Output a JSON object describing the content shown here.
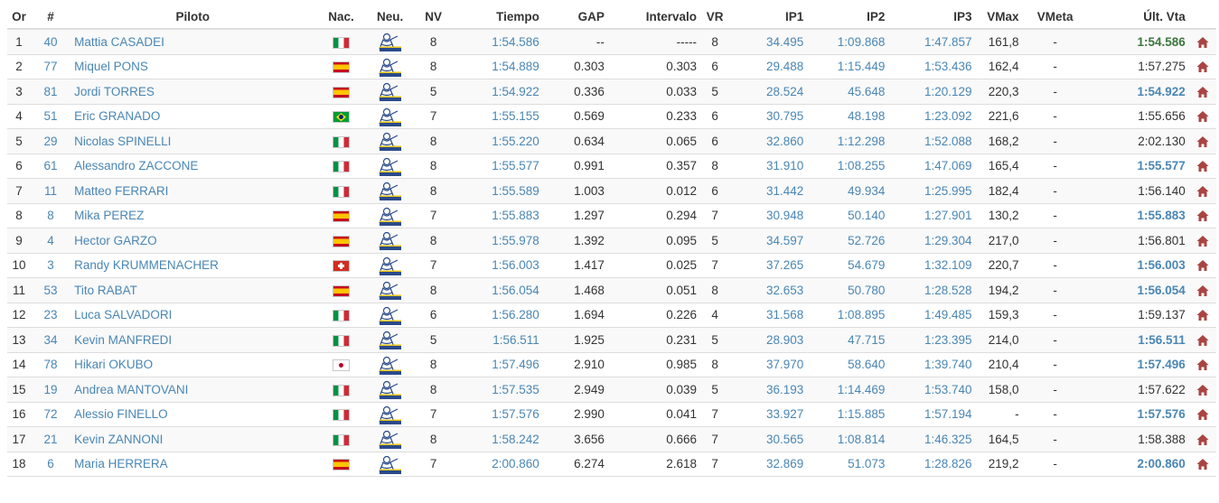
{
  "colors": {
    "link": "#4a86b4",
    "personal_best": "#3c763d",
    "home_icon": "#a94442",
    "tyre_icon": "#2a4a8a"
  },
  "tyre_icon_name": "michelin-tyre-icon",
  "row_icon_name": "home-icon",
  "columns": [
    "Or",
    "#",
    "Piloto",
    "Nac.",
    "Neu.",
    "NV",
    "Tiempo",
    "GAP",
    "Intervalo",
    "VR",
    "IP1",
    "IP2",
    "IP3",
    "VMax",
    "VMeta",
    "Últ. Vta"
  ],
  "rows": [
    {
      "pos": "1",
      "num": "40",
      "name": "Mattia CASADEI",
      "flag": "it",
      "nv": "8",
      "time": "1:54.586",
      "gap": "--",
      "interval": "-----",
      "vr": "8",
      "ip1": "34.495",
      "ip2": "1:09.868",
      "ip3": "1:47.857",
      "vmax": "161,8",
      "vmeta": "-",
      "last": "1:54.586",
      "last_style": "pb"
    },
    {
      "pos": "2",
      "num": "77",
      "name": "Miquel PONS",
      "flag": "es",
      "nv": "8",
      "time": "1:54.889",
      "gap": "0.303",
      "interval": "0.303",
      "vr": "6",
      "ip1": "29.488",
      "ip2": "1:15.449",
      "ip3": "1:53.436",
      "vmax": "162,4",
      "vmeta": "-",
      "last": "1:57.275",
      "last_style": "normal"
    },
    {
      "pos": "3",
      "num": "81",
      "name": "Jordi TORRES",
      "flag": "es",
      "nv": "5",
      "time": "1:54.922",
      "gap": "0.336",
      "interval": "0.033",
      "vr": "5",
      "ip1": "28.524",
      "ip2": "45.648",
      "ip3": "1:20.129",
      "vmax": "220,3",
      "vmeta": "-",
      "last": "1:54.922",
      "last_style": "best"
    },
    {
      "pos": "4",
      "num": "51",
      "name": "Eric GRANADO",
      "flag": "br",
      "nv": "7",
      "time": "1:55.155",
      "gap": "0.569",
      "interval": "0.233",
      "vr": "6",
      "ip1": "30.795",
      "ip2": "48.198",
      "ip3": "1:23.092",
      "vmax": "221,6",
      "vmeta": "-",
      "last": "1:55.656",
      "last_style": "normal"
    },
    {
      "pos": "5",
      "num": "29",
      "name": "Nicolas SPINELLI",
      "flag": "it",
      "nv": "8",
      "time": "1:55.220",
      "gap": "0.634",
      "interval": "0.065",
      "vr": "6",
      "ip1": "32.860",
      "ip2": "1:12.298",
      "ip3": "1:52.088",
      "vmax": "168,2",
      "vmeta": "-",
      "last": "2:02.130",
      "last_style": "normal"
    },
    {
      "pos": "6",
      "num": "61",
      "name": "Alessandro ZACCONE",
      "flag": "it",
      "nv": "8",
      "time": "1:55.577",
      "gap": "0.991",
      "interval": "0.357",
      "vr": "8",
      "ip1": "31.910",
      "ip2": "1:08.255",
      "ip3": "1:47.069",
      "vmax": "165,4",
      "vmeta": "-",
      "last": "1:55.577",
      "last_style": "best"
    },
    {
      "pos": "7",
      "num": "11",
      "name": "Matteo FERRARI",
      "flag": "it",
      "nv": "8",
      "time": "1:55.589",
      "gap": "1.003",
      "interval": "0.012",
      "vr": "6",
      "ip1": "31.442",
      "ip2": "49.934",
      "ip3": "1:25.995",
      "vmax": "182,4",
      "vmeta": "-",
      "last": "1:56.140",
      "last_style": "normal"
    },
    {
      "pos": "8",
      "num": "8",
      "name": "Mika PEREZ",
      "flag": "es",
      "nv": "7",
      "time": "1:55.883",
      "gap": "1.297",
      "interval": "0.294",
      "vr": "7",
      "ip1": "30.948",
      "ip2": "50.140",
      "ip3": "1:27.901",
      "vmax": "130,2",
      "vmeta": "-",
      "last": "1:55.883",
      "last_style": "best"
    },
    {
      "pos": "9",
      "num": "4",
      "name": "Hector GARZO",
      "flag": "es",
      "nv": "8",
      "time": "1:55.978",
      "gap": "1.392",
      "interval": "0.095",
      "vr": "5",
      "ip1": "34.597",
      "ip2": "52.726",
      "ip3": "1:29.304",
      "vmax": "217,0",
      "vmeta": "-",
      "last": "1:56.801",
      "last_style": "normal"
    },
    {
      "pos": "10",
      "num": "3",
      "name": "Randy KRUMMENACHER",
      "flag": "ch",
      "nv": "7",
      "time": "1:56.003",
      "gap": "1.417",
      "interval": "0.025",
      "vr": "7",
      "ip1": "37.265",
      "ip2": "54.679",
      "ip3": "1:32.109",
      "vmax": "220,7",
      "vmeta": "-",
      "last": "1:56.003",
      "last_style": "best"
    },
    {
      "pos": "11",
      "num": "53",
      "name": "Tito RABAT",
      "flag": "es",
      "nv": "8",
      "time": "1:56.054",
      "gap": "1.468",
      "interval": "0.051",
      "vr": "8",
      "ip1": "32.653",
      "ip2": "50.780",
      "ip3": "1:28.528",
      "vmax": "194,2",
      "vmeta": "-",
      "last": "1:56.054",
      "last_style": "best"
    },
    {
      "pos": "12",
      "num": "23",
      "name": "Luca SALVADORI",
      "flag": "it",
      "nv": "6",
      "time": "1:56.280",
      "gap": "1.694",
      "interval": "0.226",
      "vr": "4",
      "ip1": "31.568",
      "ip2": "1:08.895",
      "ip3": "1:49.485",
      "vmax": "159,3",
      "vmeta": "-",
      "last": "1:59.137",
      "last_style": "normal"
    },
    {
      "pos": "13",
      "num": "34",
      "name": "Kevin MANFREDI",
      "flag": "it",
      "nv": "5",
      "time": "1:56.511",
      "gap": "1.925",
      "interval": "0.231",
      "vr": "5",
      "ip1": "28.903",
      "ip2": "47.715",
      "ip3": "1:23.395",
      "vmax": "214,0",
      "vmeta": "-",
      "last": "1:56.511",
      "last_style": "best"
    },
    {
      "pos": "14",
      "num": "78",
      "name": "Hikari OKUBO",
      "flag": "jp",
      "nv": "8",
      "time": "1:57.496",
      "gap": "2.910",
      "interval": "0.985",
      "vr": "8",
      "ip1": "37.970",
      "ip2": "58.640",
      "ip3": "1:39.740",
      "vmax": "210,4",
      "vmeta": "-",
      "last": "1:57.496",
      "last_style": "best"
    },
    {
      "pos": "15",
      "num": "19",
      "name": "Andrea MANTOVANI",
      "flag": "it",
      "nv": "8",
      "time": "1:57.535",
      "gap": "2.949",
      "interval": "0.039",
      "vr": "5",
      "ip1": "36.193",
      "ip2": "1:14.469",
      "ip3": "1:53.740",
      "vmax": "158,0",
      "vmeta": "-",
      "last": "1:57.622",
      "last_style": "normal"
    },
    {
      "pos": "16",
      "num": "72",
      "name": "Alessio FINELLO",
      "flag": "it",
      "nv": "7",
      "time": "1:57.576",
      "gap": "2.990",
      "interval": "0.041",
      "vr": "7",
      "ip1": "33.927",
      "ip2": "1:15.885",
      "ip3": "1:57.194",
      "vmax": "-",
      "vmeta": "-",
      "last": "1:57.576",
      "last_style": "best"
    },
    {
      "pos": "17",
      "num": "21",
      "name": "Kevin ZANNONI",
      "flag": "it",
      "nv": "8",
      "time": "1:58.242",
      "gap": "3.656",
      "interval": "0.666",
      "vr": "7",
      "ip1": "30.565",
      "ip2": "1:08.814",
      "ip3": "1:46.325",
      "vmax": "164,5",
      "vmeta": "-",
      "last": "1:58.388",
      "last_style": "normal"
    },
    {
      "pos": "18",
      "num": "6",
      "name": "Maria HERRERA",
      "flag": "es",
      "nv": "7",
      "time": "2:00.860",
      "gap": "6.274",
      "interval": "2.618",
      "vr": "7",
      "ip1": "32.869",
      "ip2": "51.073",
      "ip3": "1:28.826",
      "vmax": "219,2",
      "vmeta": "-",
      "last": "2:00.860",
      "last_style": "best"
    }
  ]
}
